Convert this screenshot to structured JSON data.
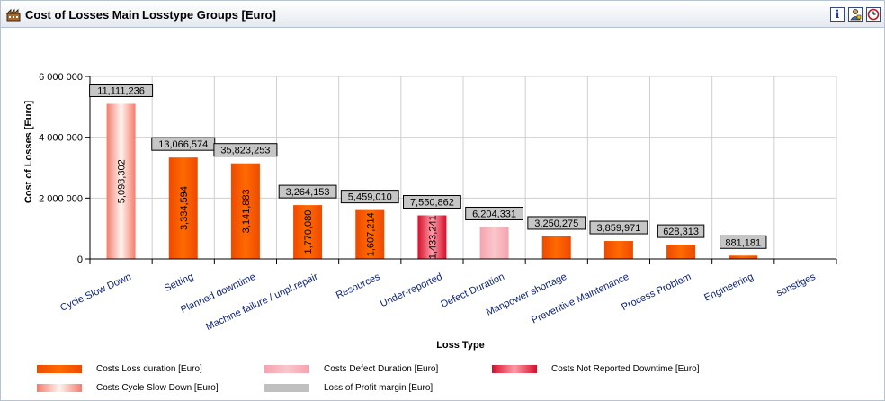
{
  "header": {
    "title": "Cost of Losses Main Losstype Groups [Euro]",
    "icons": [
      "factory-icon",
      "info-icon",
      "user-settings-icon",
      "clock-icon"
    ],
    "info_glyph": "i"
  },
  "colors": {
    "loss_duration": "#ff6a00",
    "cycle_slow_down": "#f47c6c",
    "defect_duration": "#f5a3ad",
    "not_reported": "#e8183a",
    "profit_margin": "#c0c0c0",
    "label_box": "#c6c6c6",
    "axis_text": "#0a1f7a"
  },
  "chart_data": {
    "type": "bar",
    "title": "",
    "xlabel": "Loss Type",
    "ylabel": "Cost of Losses [Euro]",
    "ylim": [
      0,
      6000000
    ],
    "yticks": [
      0,
      2000000,
      4000000,
      6000000
    ],
    "ytick_labels": [
      "0",
      "2 000 000",
      "4 000 000",
      "6 000 000"
    ],
    "grid": true,
    "legend_position": "bottom",
    "categories": [
      "Cycle Slow Down",
      "Setting",
      "Planned downtime",
      "Machine failure / unpl.repair",
      "Resources",
      "Under-reported",
      "Defect Duration",
      "Manpower shortage",
      "Preventive Maintenance",
      "Process Problem",
      "Engineering",
      "sonstiges"
    ],
    "values": [
      5098302,
      3334594,
      3141883,
      1770080,
      1607214,
      1433241,
      1050000,
      740000,
      590000,
      470000,
      110000,
      0
    ],
    "value_labels": [
      "5,098,302",
      "3,334,594",
      "3,141,883",
      "1,770,080",
      "1,607,214",
      "1,433,241",
      "",
      "",
      "",
      "",
      "",
      ""
    ],
    "series_of_bar": [
      "cycle_slow_down",
      "loss_duration",
      "loss_duration",
      "loss_duration",
      "loss_duration",
      "not_reported",
      "defect_duration",
      "loss_duration",
      "loss_duration",
      "loss_duration",
      "loss_duration",
      "loss_duration"
    ],
    "profit_margin_labels": [
      "11,111,236",
      "13,066,574",
      "35,823,253",
      "3,264,153",
      "5,459,010",
      "7,550,862",
      "6,204,331",
      "3,250,275",
      "3,859,971",
      "628,313",
      "881,181",
      ""
    ],
    "legend": [
      {
        "key": "loss_duration",
        "label": "Costs Loss duration [Euro]"
      },
      {
        "key": "defect_duration",
        "label": "Costs Defect Duration [Euro]"
      },
      {
        "key": "not_reported",
        "label": "Costs Not Reported Downtime [Euro]"
      },
      {
        "key": "cycle_slow_down",
        "label": "Costs Cycle Slow Down [Euro]"
      },
      {
        "key": "profit_margin",
        "label": "Loss of Profit margin [Euro]"
      }
    ]
  }
}
